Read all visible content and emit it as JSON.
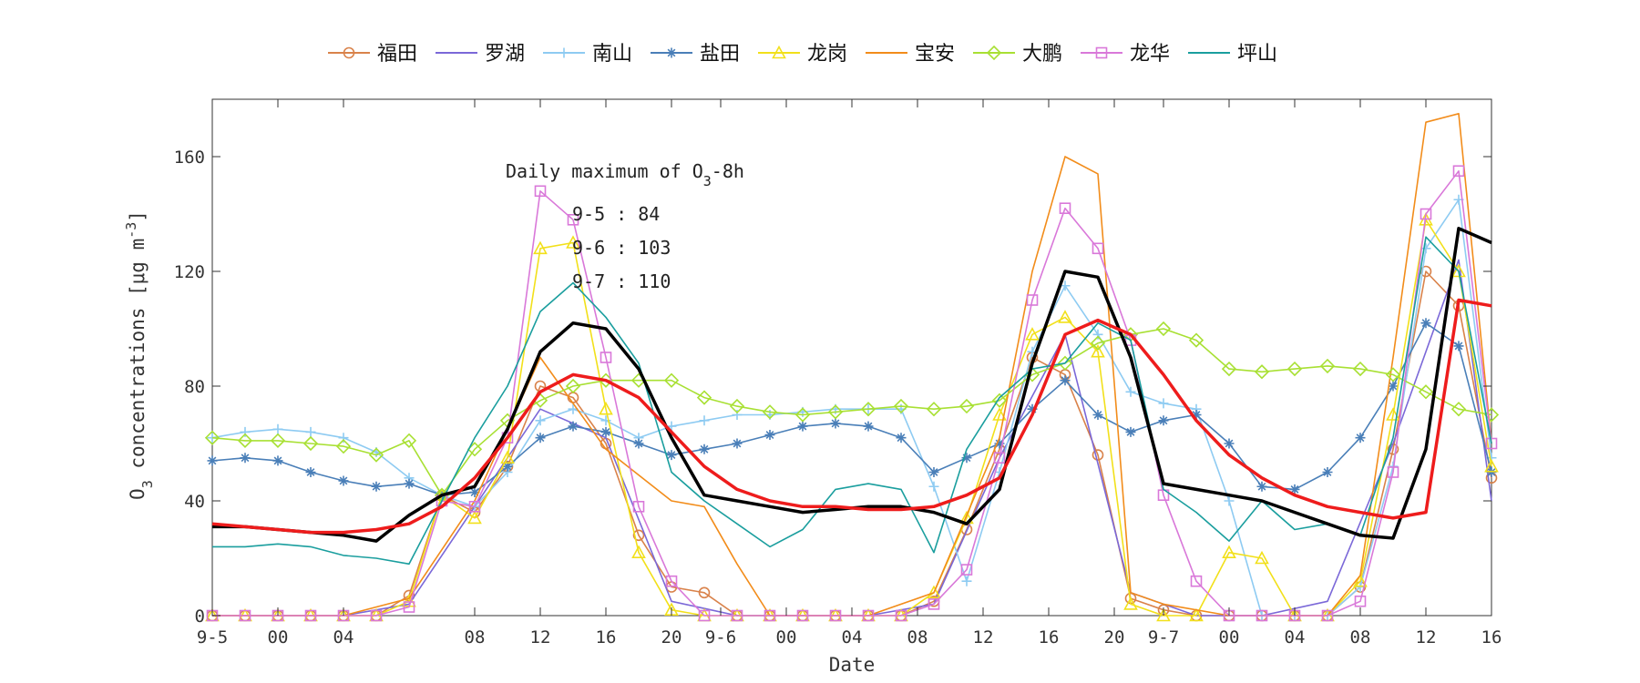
{
  "chart_data": {
    "type": "line",
    "xlabel": "Date",
    "ylabel": "O3 concentrations [μg m-3]",
    "ylim": [
      0,
      180
    ],
    "yticks": [
      0,
      40,
      80,
      120,
      160
    ],
    "xlim": [
      0,
      78
    ],
    "xticks": [
      {
        "x": 0,
        "label": "9-5"
      },
      {
        "x": 4,
        "label": "00"
      },
      {
        "x": 8,
        "label": "04"
      },
      {
        "x": 16,
        "label": "08"
      },
      {
        "x": 20,
        "label": "12"
      },
      {
        "x": 24,
        "label": "16"
      },
      {
        "x": 28,
        "label": "20"
      },
      {
        "x": 31,
        "label": "9-6"
      },
      {
        "x": 35,
        "label": "00"
      },
      {
        "x": 39,
        "label": "04"
      },
      {
        "x": 43,
        "label": "08"
      },
      {
        "x": 47,
        "label": "12"
      },
      {
        "x": 51,
        "label": "16"
      },
      {
        "x": 55,
        "label": "20"
      },
      {
        "x": 58,
        "label": "9-7"
      },
      {
        "x": 62,
        "label": "00"
      },
      {
        "x": 66,
        "label": "04"
      },
      {
        "x": 70,
        "label": "08"
      },
      {
        "x": 74,
        "label": "12"
      },
      {
        "x": 78,
        "label": "16"
      }
    ],
    "grid": false,
    "legend_position": "top",
    "annotation": {
      "title": "Daily maximum of O3-8h",
      "lines": [
        "9-5 : 84",
        "9-6 : 103",
        "9-7 : 110"
      ]
    },
    "series": [
      {
        "name": "福田",
        "color": "#d9824a",
        "marker": "circle",
        "x": [
          0,
          2,
          4,
          6,
          8,
          10,
          12,
          14,
          16,
          18,
          20,
          22,
          24,
          26,
          28,
          30,
          32,
          34,
          36,
          38,
          40,
          42,
          44,
          46,
          48,
          50,
          52,
          54,
          56,
          58,
          60,
          62,
          64,
          66,
          68,
          70,
          72,
          74,
          76,
          78
        ],
        "y": [
          0,
          0,
          0,
          0,
          0,
          0,
          7,
          42,
          36,
          52,
          80,
          76,
          60,
          28,
          10,
          8,
          0,
          0,
          0,
          0,
          0,
          0,
          5,
          30,
          58,
          90,
          84,
          56,
          6,
          2,
          0,
          0,
          0,
          0,
          0,
          10,
          58,
          120,
          108,
          48
        ]
      },
      {
        "name": "罗湖",
        "color": "#7b68d8",
        "marker": "none",
        "x": [
          0,
          4,
          8,
          12,
          16,
          20,
          24,
          28,
          32,
          36,
          40,
          44,
          48,
          52,
          56,
          60,
          64,
          68,
          72,
          76,
          78
        ],
        "y": [
          0,
          0,
          0,
          4,
          38,
          72,
          62,
          5,
          0,
          0,
          0,
          4,
          55,
          98,
          8,
          0,
          0,
          5,
          60,
          124,
          40
        ]
      },
      {
        "name": "南山",
        "color": "#8ecbf2",
        "marker": "plus",
        "x": [
          0,
          2,
          4,
          6,
          8,
          10,
          12,
          14,
          16,
          18,
          20,
          22,
          24,
          26,
          28,
          30,
          32,
          34,
          36,
          38,
          40,
          42,
          44,
          46,
          48,
          50,
          52,
          54,
          56,
          58,
          60,
          62,
          64,
          66,
          68,
          70,
          72,
          74,
          76,
          78
        ],
        "y": [
          62,
          64,
          65,
          64,
          62,
          57,
          48,
          42,
          38,
          50,
          68,
          72,
          68,
          62,
          66,
          68,
          70,
          70,
          71,
          72,
          72,
          72,
          45,
          12,
          50,
          92,
          115,
          98,
          78,
          74,
          72,
          40,
          0,
          0,
          0,
          10,
          52,
          128,
          145,
          55
        ]
      },
      {
        "name": "盐田",
        "color": "#4a7fb8",
        "marker": "star",
        "x": [
          0,
          2,
          4,
          6,
          8,
          10,
          12,
          14,
          16,
          18,
          20,
          22,
          24,
          26,
          28,
          30,
          32,
          34,
          36,
          38,
          40,
          42,
          44,
          46,
          48,
          50,
          52,
          54,
          56,
          58,
          60,
          62,
          64,
          66,
          68,
          70,
          72,
          74,
          76,
          78
        ],
        "y": [
          54,
          55,
          54,
          50,
          47,
          45,
          46,
          42,
          43,
          52,
          62,
          66,
          64,
          60,
          56,
          58,
          60,
          63,
          66,
          67,
          66,
          62,
          50,
          55,
          60,
          72,
          82,
          70,
          64,
          68,
          70,
          60,
          45,
          44,
          50,
          62,
          80,
          102,
          94,
          50
        ]
      },
      {
        "name": "龙岗",
        "color": "#f2e01a",
        "marker": "triangle",
        "x": [
          0,
          2,
          4,
          6,
          8,
          10,
          12,
          14,
          16,
          18,
          20,
          22,
          24,
          26,
          28,
          30,
          32,
          34,
          36,
          38,
          40,
          42,
          44,
          46,
          48,
          50,
          52,
          54,
          56,
          58,
          60,
          62,
          64,
          66,
          68,
          70,
          72,
          74,
          76,
          78
        ],
        "y": [
          0,
          0,
          0,
          0,
          0,
          0,
          5,
          42,
          34,
          55,
          128,
          130,
          72,
          22,
          2,
          0,
          0,
          0,
          0,
          0,
          0,
          0,
          8,
          34,
          70,
          98,
          104,
          92,
          4,
          0,
          0,
          22,
          20,
          0,
          0,
          12,
          70,
          138,
          120,
          52
        ]
      },
      {
        "name": "宝安",
        "color": "#f28c1a",
        "marker": "none",
        "x": [
          0,
          4,
          8,
          12,
          16,
          20,
          24,
          28,
          30,
          32,
          34,
          36,
          40,
          44,
          48,
          50,
          52,
          54,
          56,
          58,
          62,
          66,
          68,
          70,
          72,
          74,
          76,
          78
        ],
        "y": [
          0,
          0,
          0,
          6,
          40,
          90,
          58,
          40,
          38,
          18,
          0,
          0,
          0,
          8,
          62,
          120,
          160,
          154,
          8,
          4,
          0,
          0,
          0,
          14,
          90,
          172,
          175,
          60
        ]
      },
      {
        "name": "大鹏",
        "color": "#a8e033",
        "marker": "diamond",
        "x": [
          0,
          2,
          4,
          6,
          8,
          10,
          12,
          14,
          16,
          18,
          20,
          22,
          24,
          26,
          28,
          30,
          32,
          34,
          36,
          38,
          40,
          42,
          44,
          46,
          48,
          50,
          52,
          54,
          56,
          58,
          60,
          62,
          64,
          66,
          68,
          70,
          72,
          74,
          76,
          78
        ],
        "y": [
          62,
          61,
          61,
          60,
          59,
          56,
          61,
          42,
          58,
          68,
          75,
          80,
          82,
          82,
          82,
          76,
          73,
          71,
          70,
          71,
          72,
          73,
          72,
          73,
          75,
          84,
          88,
          95,
          98,
          100,
          96,
          86,
          85,
          86,
          87,
          86,
          84,
          78,
          72,
          70
        ]
      },
      {
        "name": "龙华",
        "color": "#d978d9",
        "marker": "square",
        "x": [
          0,
          2,
          4,
          6,
          8,
          10,
          12,
          14,
          16,
          18,
          20,
          22,
          24,
          26,
          28,
          30,
          32,
          34,
          36,
          38,
          40,
          42,
          44,
          46,
          48,
          50,
          52,
          54,
          56,
          58,
          60,
          62,
          64,
          66,
          68,
          70,
          72,
          74,
          76,
          78
        ],
        "y": [
          0,
          0,
          0,
          0,
          0,
          0,
          3,
          40,
          38,
          62,
          148,
          138,
          90,
          38,
          12,
          0,
          0,
          0,
          0,
          0,
          0,
          0,
          4,
          16,
          55,
          110,
          142,
          128,
          96,
          42,
          12,
          0,
          0,
          0,
          0,
          5,
          50,
          140,
          155,
          60
        ]
      },
      {
        "name": "坪山",
        "color": "#1a9e9e",
        "marker": "none",
        "x": [
          0,
          2,
          4,
          6,
          8,
          10,
          12,
          14,
          16,
          18,
          20,
          22,
          24,
          26,
          28,
          30,
          32,
          34,
          36,
          38,
          40,
          42,
          44,
          46,
          48,
          50,
          52,
          54,
          56,
          58,
          60,
          62,
          64,
          66,
          68,
          70,
          72,
          74,
          76,
          78
        ],
        "y": [
          24,
          24,
          25,
          24,
          21,
          20,
          18,
          40,
          62,
          80,
          106,
          116,
          104,
          88,
          50,
          40,
          32,
          24,
          30,
          44,
          46,
          44,
          22,
          58,
          76,
          86,
          88,
          102,
          96,
          44,
          36,
          26,
          40,
          30,
          32,
          28,
          62,
          132,
          120,
          60
        ]
      },
      {
        "name": "",
        "color": "#000000",
        "marker": "none",
        "width": 3.5,
        "x": [
          0,
          2,
          4,
          6,
          8,
          10,
          12,
          14,
          16,
          18,
          20,
          22,
          24,
          26,
          28,
          30,
          32,
          34,
          36,
          38,
          40,
          42,
          44,
          46,
          48,
          50,
          52,
          54,
          56,
          58,
          60,
          62,
          64,
          66,
          68,
          70,
          72,
          74,
          76,
          78
        ],
        "y": [
          31,
          31,
          30,
          29,
          28,
          26,
          35,
          42,
          45,
          65,
          92,
          102,
          100,
          86,
          62,
          42,
          40,
          38,
          36,
          37,
          38,
          38,
          36,
          32,
          44,
          88,
          120,
          118,
          90,
          46,
          44,
          42,
          40,
          36,
          32,
          28,
          27,
          58,
          135,
          130
        ]
      },
      {
        "name": "",
        "color": "#ee1c1c",
        "marker": "none",
        "width": 3.5,
        "x": [
          0,
          2,
          4,
          6,
          8,
          10,
          12,
          14,
          16,
          18,
          20,
          22,
          24,
          26,
          28,
          30,
          32,
          34,
          36,
          38,
          40,
          42,
          44,
          46,
          48,
          50,
          52,
          54,
          56,
          58,
          60,
          62,
          64,
          66,
          68,
          70,
          72,
          74,
          76,
          78
        ],
        "y": [
          32,
          31,
          30,
          29,
          29,
          30,
          32,
          38,
          48,
          62,
          78,
          84,
          82,
          76,
          64,
          52,
          44,
          40,
          38,
          38,
          37,
          37,
          38,
          42,
          48,
          70,
          98,
          103,
          98,
          84,
          68,
          56,
          48,
          42,
          38,
          36,
          34,
          36,
          110,
          108
        ]
      }
    ]
  }
}
